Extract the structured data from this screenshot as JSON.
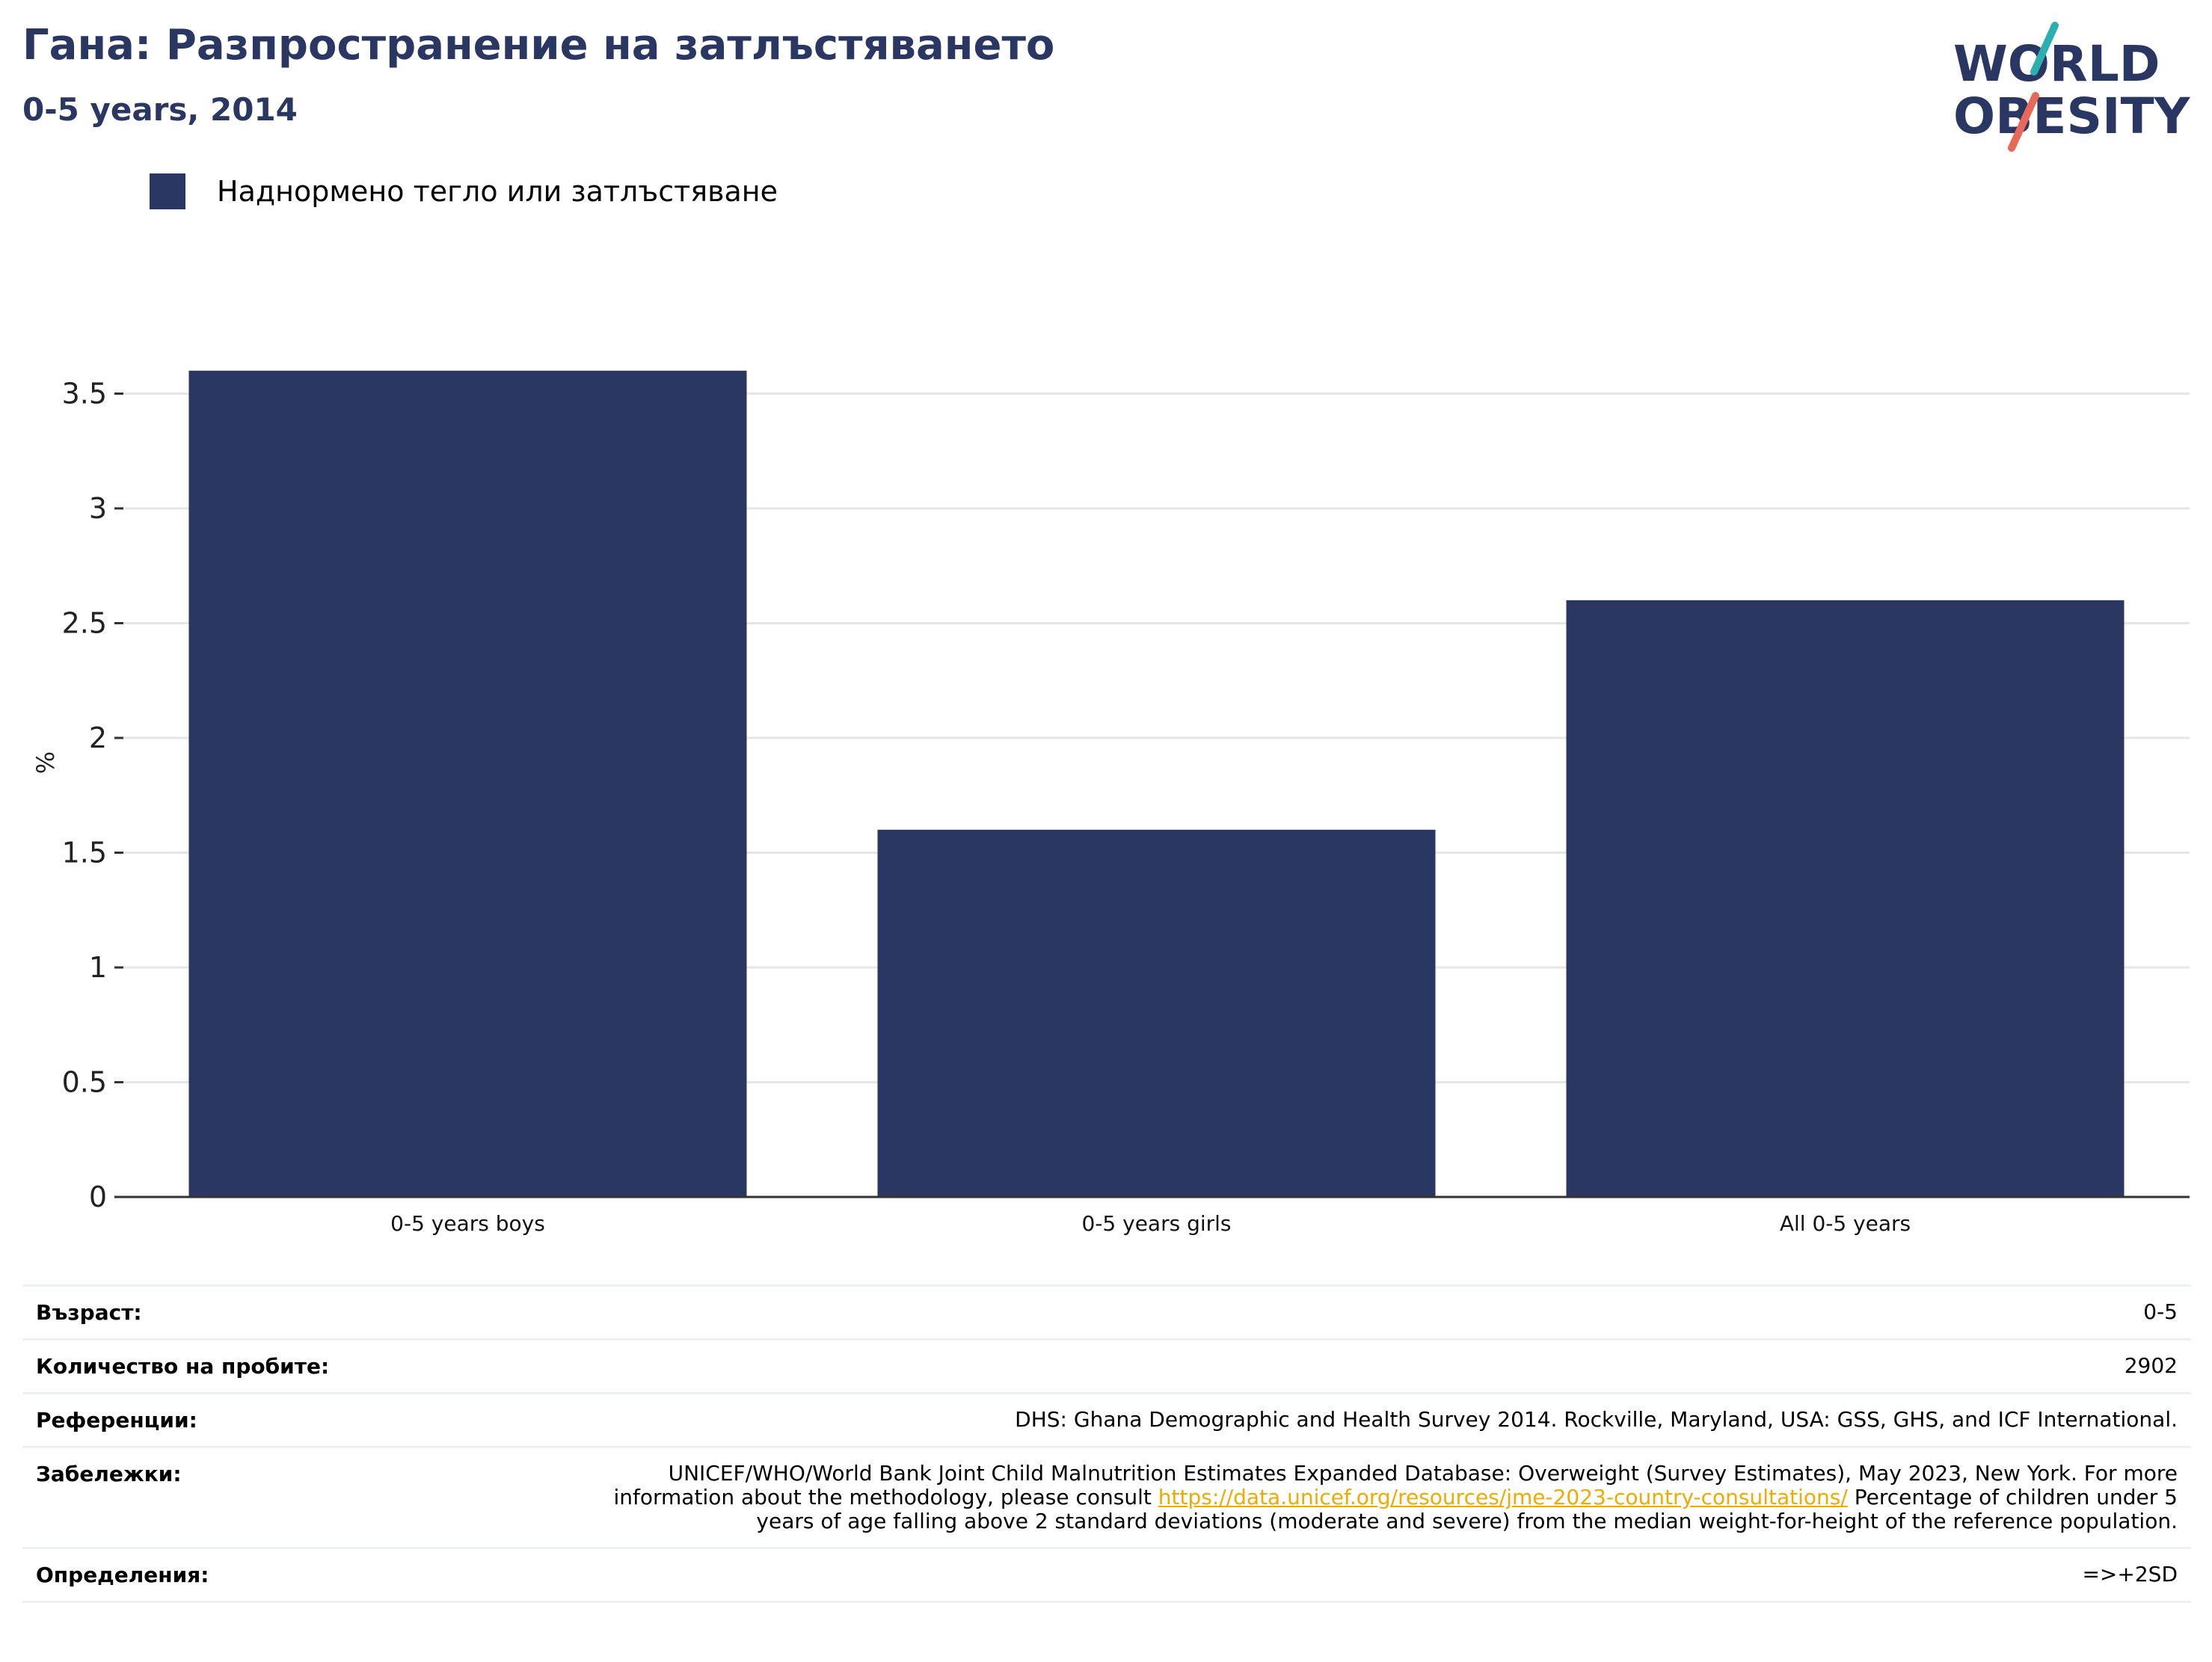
{
  "header": {
    "title": "Гана: Разпространение на затлъстяването",
    "subtitle": "0-5 years, 2014"
  },
  "logo": {
    "line1": "WORLD",
    "line2": "OBESITY"
  },
  "legend": {
    "label": "Наднормено тегло или затлъстяване"
  },
  "colors": {
    "bar": "#2b3763",
    "grid": "#e6e6e6",
    "axis": "#333333",
    "link": "#f2a900",
    "logo_teal": "#2bb0b0",
    "logo_coral": "#e8685a"
  },
  "chart_data": {
    "type": "bar",
    "categories": [
      "0-5 years boys",
      "0-5 years girls",
      "All 0-5 years"
    ],
    "series": [
      {
        "name": "Наднормено тегло или затлъстяване",
        "values": [
          3.6,
          1.6,
          2.6
        ]
      }
    ],
    "ylabel": "%",
    "ylim": [
      0,
      3.6
    ],
    "yticks": [
      0,
      0.5,
      1,
      1.5,
      2,
      2.5,
      3,
      3.5
    ],
    "ytick_labels": [
      "0",
      "0.5",
      "1",
      "1.5",
      "2",
      "2.5",
      "3",
      "3.5"
    ],
    "grid": true,
    "legend_position": "top-left"
  },
  "meta": {
    "age_label": "Възраст:",
    "age_value": "0-5",
    "sample_label": "Количество на пробите:",
    "sample_value": "2902",
    "references_label": "Референции:",
    "references_value": "DHS: Ghana Demographic and Health Survey 2014. Rockville, Maryland, USA: GSS, GHS, and ICF International.",
    "notes_label": "Забележки:",
    "notes_before": "UNICEF/WHO/World Bank Joint Child Malnutrition Estimates Expanded Database: Overweight (Survey Estimates), May 2023, New York. For more information about the methodology, please consult ",
    "notes_link": "https://data.unicef.org/resources/jme-2023-country-consultations/",
    "notes_after": " Percentage of children under 5 years of age falling above 2 standard deviations (moderate and severe) from the median weight-for-height of the reference population.",
    "definitions_label": "Определения:",
    "definitions_value": "=>+2SD"
  }
}
